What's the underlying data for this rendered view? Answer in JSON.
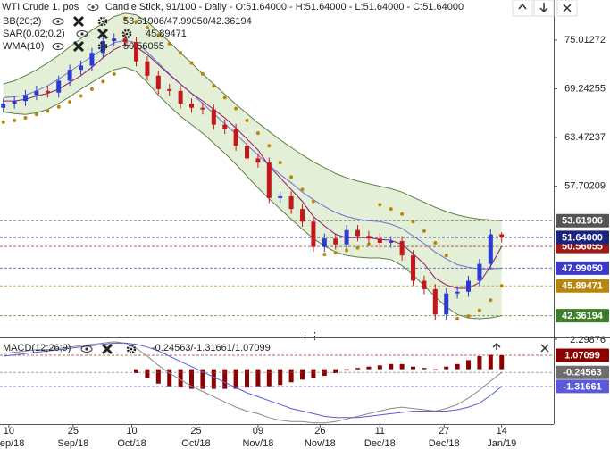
{
  "chart_data": {
    "type": "candlestick",
    "title": "WTI Crude 1. pos",
    "subtitle": "Candle Stick, 91/100 - Daily - O:51.64000 - H:51.64000 - L:51.64000 - C:51.64000",
    "up_color": "#2b3bd1",
    "down_color": "#c4161c",
    "open": [
      67.0,
      67.5,
      67.8,
      68.5,
      69.0,
      68.8,
      70.2,
      71.5,
      72.0,
      73.5,
      74.9,
      75.2,
      74.8,
      72.5,
      70.8,
      69.2,
      69.0,
      67.5,
      67.0,
      66.8,
      65.0,
      64.5,
      62.5,
      61.0,
      60.5,
      56.3,
      56.5,
      55.0,
      53.5,
      50.5,
      51.5,
      50.8,
      52.5,
      51.8,
      51.5,
      51.0,
      51.2,
      49.5,
      46.5,
      45.5,
      42.5,
      45.0,
      45.2,
      46.5,
      48.5,
      52.0
    ],
    "high": [
      68.1,
      68.4,
      69.1,
      69.6,
      69.6,
      70.8,
      72.1,
      72.6,
      74.1,
      75.5,
      75.8,
      75.8,
      75.4,
      73.1,
      71.4,
      69.8,
      69.6,
      68.1,
      67.6,
      67.4,
      65.6,
      65.1,
      63.1,
      61.6,
      61.1,
      57.1,
      57.1,
      55.6,
      54.1,
      52.1,
      52.1,
      53.1,
      53.1,
      52.4,
      52.1,
      51.8,
      51.8,
      50.1,
      47.1,
      46.1,
      45.6,
      45.8,
      47.1,
      49.1,
      52.6,
      52.24
    ],
    "low": [
      66.4,
      66.9,
      67.2,
      67.9,
      68.2,
      68.2,
      69.6,
      70.9,
      71.4,
      72.9,
      74.3,
      74.2,
      71.9,
      70.2,
      68.6,
      68.4,
      66.9,
      66.4,
      66.2,
      64.4,
      63.9,
      61.9,
      60.4,
      59.9,
      55.7,
      55.7,
      54.4,
      52.9,
      49.9,
      49.9,
      50.2,
      50.2,
      51.2,
      50.9,
      50.4,
      50.4,
      48.9,
      45.9,
      44.9,
      41.9,
      41.9,
      44.4,
      44.6,
      45.9,
      47.9,
      51.04
    ],
    "close": [
      67.5,
      67.8,
      68.5,
      69.0,
      68.8,
      70.2,
      71.5,
      72.0,
      73.5,
      74.9,
      75.2,
      74.8,
      72.5,
      70.8,
      69.2,
      69.0,
      67.5,
      67.0,
      66.8,
      65.0,
      64.5,
      62.5,
      61.0,
      60.5,
      56.3,
      56.5,
      55.0,
      53.5,
      50.5,
      51.5,
      50.8,
      52.5,
      51.8,
      51.5,
      51.0,
      51.2,
      49.5,
      46.5,
      45.5,
      42.5,
      45.0,
      45.2,
      46.5,
      48.5,
      52.0,
      51.64
    ],
    "close_label": "51.64000",
    "close_tag_color": "#1a237e",
    "ylim": [
      39.78,
      79.77
    ],
    "yticks": [
      75.01272,
      69.24255,
      63.47237,
      57.70209
    ],
    "xlim": [
      -0.3,
      49.7
    ],
    "xticks": [
      {
        "value": 0.5,
        "label": "10",
        "sublabel": "Sep/18"
      },
      {
        "value": 6.3,
        "label": "25",
        "sublabel": "Sep/18"
      },
      {
        "value": 11.6,
        "label": "10",
        "sublabel": "Oct/18"
      },
      {
        "value": 17.4,
        "label": "25",
        "sublabel": "Oct/18"
      },
      {
        "value": 23,
        "label": "09",
        "sublabel": "Nov/18"
      },
      {
        "value": 28.6,
        "label": "26",
        "sublabel": "Nov/18"
      },
      {
        "value": 34,
        "label": "11",
        "sublabel": "Dec/18"
      },
      {
        "value": 39.8,
        "label": "27",
        "sublabel": "Dec/18"
      },
      {
        "value": 45,
        "label": "14",
        "sublabel": "Jan/19"
      }
    ],
    "overlays": [
      {
        "name": "BB(20;2)",
        "legend": "53.61906/47.99050/42.36194",
        "legend_color": "#5f8f3a",
        "band_fill": "#e3efd6",
        "series": [
          {
            "style": "line",
            "color": "#5d7f45",
            "tag_color": "#555555",
            "last_label": "53.61906",
            "values": [
              69.8,
              70.2,
              70.8,
              71.5,
              72.3,
              73.2,
              74.2,
              75.2,
              76.2,
              77.0,
              77.8,
              78.2,
              78.0,
              77.2,
              76.0,
              74.8,
              73.5,
              72.3,
              71.0,
              69.8,
              68.6,
              67.4,
              66.3,
              65.2,
              64.2,
              63.2,
              62.3,
              61.4,
              60.6,
              59.9,
              59.2,
              58.7,
              58.3,
              58.0,
              57.7,
              57.4,
              57.0,
              56.4,
              55.8,
              55.2,
              54.7,
              54.3,
              54.0,
              53.8,
              53.7,
              53.61906
            ]
          },
          {
            "style": "line",
            "color": "#7070d0",
            "tag_color": "#3b3bc8",
            "last_label": "47.99050",
            "values": [
              68.2,
              68.3,
              68.5,
              69.0,
              69.6,
              70.4,
              71.3,
              72.2,
              73.1,
              73.9,
              74.7,
              75.0,
              74.7,
              73.6,
              72.3,
              71.0,
              69.8,
              68.7,
              67.5,
              66.3,
              65.1,
              63.9,
              62.6,
              61.4,
              60.2,
              59.1,
              58.1,
              57.0,
              56.1,
              55.3,
              54.6,
              54.1,
              53.8,
              53.6,
              53.5,
              53.2,
              52.7,
              51.8,
              50.9,
              49.9,
              49.1,
              48.4,
              48.1,
              47.9,
              47.9,
              47.9905
            ]
          },
          {
            "style": "line",
            "color": "#5d7f45",
            "tag_color": "#3f7d2c",
            "last_label": "42.36194",
            "values": [
              66.5,
              66.3,
              66.2,
              66.4,
              66.8,
              67.5,
              68.3,
              69.2,
              70.0,
              70.8,
              71.5,
              71.8,
              71.3,
              70.0,
              68.5,
              67.2,
              66.0,
              65.0,
              64.0,
              62.8,
              61.6,
              60.3,
              58.9,
              57.5,
              56.2,
              55.0,
              53.8,
              52.6,
              51.5,
              50.6,
              49.9,
              49.5,
              49.3,
              49.2,
              49.2,
              49.0,
              48.3,
              47.2,
              45.9,
              44.6,
              43.4,
              42.5,
              42.1,
              42.0,
              42.1,
              42.36194
            ]
          }
        ]
      },
      {
        "name": "SAR(0.02;0.2)",
        "legend": "45.89471",
        "legend_color": "#b8860b",
        "series": [
          {
            "style": "dots",
            "color": "#b8860b",
            "tag_color": "#b8860b",
            "last_label": "45.89471",
            "values": [
              65.3,
              65.5,
              65.8,
              66.2,
              66.6,
              67.1,
              67.7,
              68.4,
              69.2,
              70.1,
              71.0,
              77.6,
              77.2,
              76.5,
              75.6,
              74.6,
              73.5,
              72.3,
              71.0,
              69.6,
              68.2,
              66.9,
              65.5,
              64.0,
              62.5,
              60.5,
              58.8,
              57.3,
              55.9,
              49.6,
              49.8,
              50.1,
              50.4,
              50.8,
              55.5,
              55.0,
              54.4,
              53.5,
              52.4,
              51.0,
              49.5,
              42.0,
              42.3,
              43.0,
              44.2,
              45.89471
            ]
          }
        ]
      },
      {
        "name": "WMA(10)",
        "legend": "50.56055",
        "legend_color": "#8b1a6b",
        "series": [
          {
            "style": "line",
            "color": "#8b1a6b",
            "tag_color": "#9b1b1b",
            "last_label": "50.56055",
            "values": [
              67.8,
              67.8,
              68.0,
              68.4,
              68.7,
              69.2,
              70.0,
              70.8,
              71.8,
              72.9,
              73.9,
              74.5,
              74.2,
              73.3,
              72.1,
              70.9,
              69.8,
              68.7,
              67.8,
              66.8,
              65.8,
              64.6,
              63.3,
              62.0,
              60.1,
              58.7,
              57.3,
              55.9,
              54.1,
              53.0,
              52.0,
              51.6,
              51.6,
              51.6,
              51.4,
              51.3,
              50.8,
              49.7,
              48.5,
              46.8,
              46.0,
              45.6,
              45.6,
              46.3,
              48.2,
              50.56055
            ]
          }
        ]
      }
    ],
    "macd": {
      "name": "MACD(12;26;9)",
      "legend": "-0.24563/-1.31661/1.07099",
      "legend_color": "#6a6aa8",
      "ylim": [
        -4.19,
        2.29876
      ],
      "yticks": [
        2.29876
      ],
      "series": [
        {
          "style": "bars",
          "color": "#8b0000",
          "tag_color": "#8b0000",
          "last_label": "1.07099",
          "values": [
            null,
            null,
            null,
            null,
            null,
            null,
            null,
            null,
            null,
            null,
            null,
            null,
            -0.3,
            -0.7,
            -1.1,
            -1.3,
            -1.4,
            -1.5,
            -1.5,
            -1.5,
            -1.5,
            -1.5,
            -1.4,
            -1.3,
            -1.3,
            -1.2,
            -1.0,
            -0.8,
            -0.7,
            -0.5,
            -0.3,
            -0.1,
            0.1,
            0.2,
            0.3,
            0.4,
            0.4,
            0.2,
            0.1,
            0.0,
            0.2,
            0.4,
            0.7,
            1.0,
            1.1,
            1.07099
          ]
        },
        {
          "style": "line",
          "color": "#8a8a8a",
          "tag_color": "#6d6d6d",
          "last_label": "-0.24563",
          "values": [
            1.2,
            1.3,
            1.4,
            1.5,
            1.5,
            1.6,
            1.7,
            1.8,
            1.9,
            2.0,
            2.1,
            2.0,
            1.6,
            1.0,
            0.3,
            -0.3,
            -0.8,
            -1.3,
            -1.7,
            -2.1,
            -2.5,
            -2.9,
            -3.2,
            -3.4,
            -3.7,
            -3.9,
            -4.0,
            -4.0,
            -4.1,
            -4.1,
            -4.0,
            -3.8,
            -3.6,
            -3.4,
            -3.2,
            -3.0,
            -2.9,
            -3.0,
            -3.1,
            -3.2,
            -3.0,
            -2.7,
            -2.2,
            -1.6,
            -0.9,
            -0.24563
          ]
        },
        {
          "style": "line",
          "color": "#5a5ad8",
          "tag_color": "#5a5ad8",
          "last_label": "-1.31661",
          "values": [
            1.0,
            1.1,
            1.2,
            1.3,
            1.4,
            1.5,
            1.6,
            1.7,
            1.8,
            1.9,
            2.0,
            2.0,
            1.9,
            1.7,
            1.4,
            1.0,
            0.6,
            0.2,
            -0.2,
            -0.6,
            -1.0,
            -1.4,
            -1.8,
            -2.1,
            -2.4,
            -2.7,
            -3.0,
            -3.2,
            -3.4,
            -3.6,
            -3.7,
            -3.7,
            -3.7,
            -3.6,
            -3.5,
            -3.4,
            -3.3,
            -3.2,
            -3.2,
            -3.2,
            -3.2,
            -3.1,
            -2.9,
            -2.6,
            -2.0,
            -1.31661
          ]
        }
      ]
    }
  }
}
